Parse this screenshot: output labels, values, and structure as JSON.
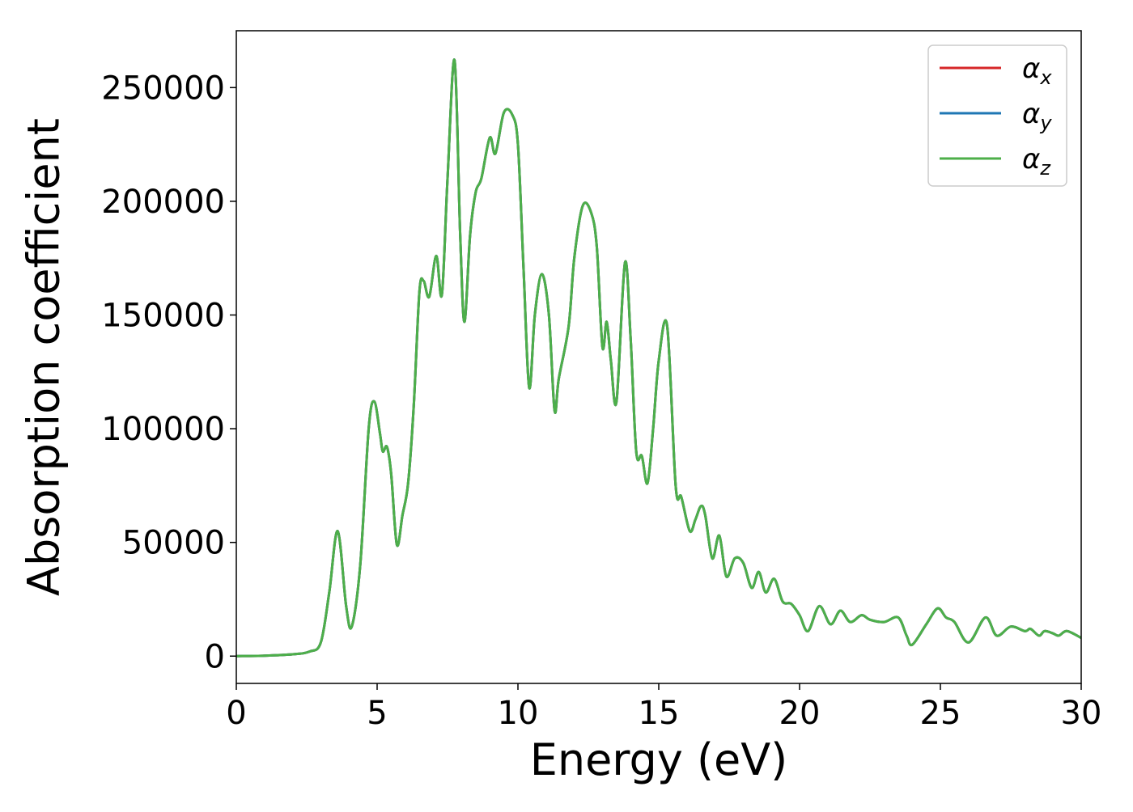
{
  "chart_data": {
    "type": "line",
    "xlabel": "Energy (eV)",
    "ylabel": "Absorption coefficient",
    "xlim": [
      0,
      30
    ],
    "ylim": [
      -12000,
      275000
    ],
    "xticks": [
      0,
      5,
      10,
      15,
      20,
      25,
      30
    ],
    "yticks": [
      0,
      50000,
      100000,
      150000,
      200000,
      250000
    ],
    "grid": false,
    "legend_position": "top-right",
    "series_colors": {
      "x": "#d62728",
      "y": "#1f77b4",
      "z": "#4daf4a"
    },
    "series": [
      {
        "name": "α",
        "subscript": "x",
        "color": "#d62728"
      },
      {
        "name": "α",
        "subscript": "y",
        "color": "#1f77b4"
      },
      {
        "name": "α",
        "subscript": "z",
        "color": "#4daf4a"
      }
    ],
    "x": [
      0,
      1,
      2,
      2.6,
      3.0,
      3.3,
      3.6,
      3.9,
      4.1,
      4.4,
      4.7,
      4.9,
      5.1,
      5.2,
      5.35,
      5.5,
      5.7,
      5.9,
      6.1,
      6.3,
      6.5,
      6.65,
      6.85,
      7.1,
      7.3,
      7.5,
      7.75,
      7.95,
      8.1,
      8.3,
      8.5,
      8.7,
      9.0,
      9.2,
      9.5,
      9.8,
      10.0,
      10.2,
      10.4,
      10.6,
      10.85,
      11.1,
      11.3,
      11.45,
      11.8,
      12.0,
      12.3,
      12.6,
      12.8,
      13.0,
      13.15,
      13.3,
      13.5,
      13.8,
      14.0,
      14.2,
      14.4,
      14.6,
      14.8,
      15.0,
      15.3,
      15.6,
      15.8,
      16.1,
      16.3,
      16.5,
      16.65,
      16.9,
      17.15,
      17.4,
      17.7,
      18.0,
      18.3,
      18.55,
      18.8,
      19.1,
      19.4,
      19.7,
      20.0,
      20.3,
      20.7,
      21.1,
      21.45,
      21.8,
      22.2,
      22.5,
      23.0,
      23.5,
      23.8,
      24.0,
      24.5,
      24.9,
      25.2,
      25.5,
      26.0,
      26.6,
      27.0,
      27.5,
      28.0,
      28.2,
      28.5,
      28.7,
      29.0,
      29.2,
      29.5,
      30.0
    ],
    "values": [
      0,
      200,
      800,
      2000,
      6000,
      28000,
      55000,
      22000,
      13000,
      40000,
      100000,
      112000,
      98000,
      90000,
      92000,
      80000,
      49000,
      62000,
      76000,
      110000,
      160000,
      165000,
      158000,
      176000,
      159000,
      210000,
      262000,
      185000,
      147000,
      185000,
      204000,
      210000,
      228000,
      221000,
      239000,
      238000,
      225000,
      170000,
      118000,
      150000,
      168000,
      150000,
      108000,
      122000,
      145000,
      175000,
      198000,
      195000,
      180000,
      136000,
      147000,
      130000,
      112000,
      173000,
      140000,
      90000,
      88000,
      76000,
      100000,
      130000,
      145000,
      75000,
      70000,
      55000,
      60000,
      66000,
      62000,
      43000,
      53000,
      35000,
      43000,
      41000,
      30000,
      37000,
      28000,
      34000,
      24000,
      23000,
      18000,
      11000,
      22000,
      14000,
      20000,
      15000,
      18000,
      16000,
      15000,
      17000,
      9000,
      5000,
      14000,
      21000,
      17000,
      15000,
      6000,
      17000,
      9000,
      13000,
      11000,
      12000,
      9000,
      11000,
      10000,
      9000,
      11000,
      8000
    ]
  }
}
